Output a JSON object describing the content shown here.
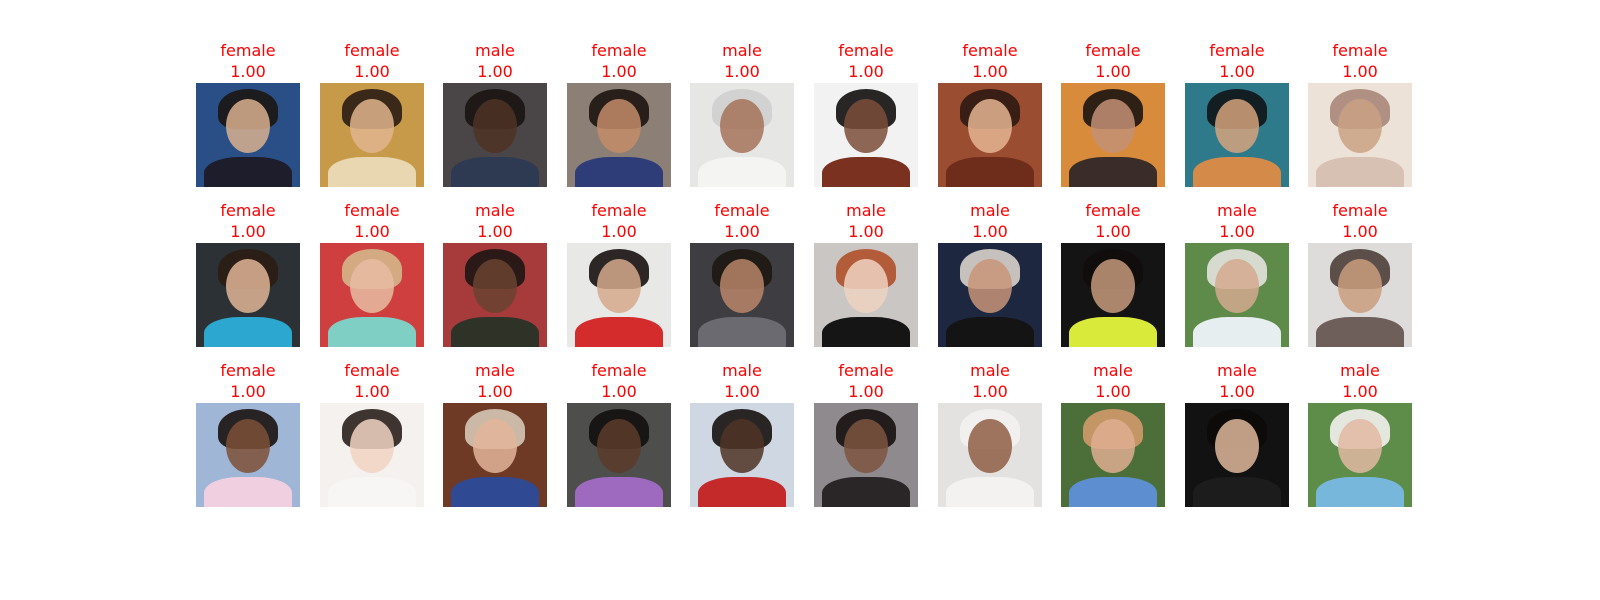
{
  "grid": {
    "cells": [
      {
        "gender": "female",
        "score": "1.00",
        "bg": "#2a4f86",
        "hair": "#1b1512",
        "skin": "#d9b08e",
        "cloth": "#1e1d2c"
      },
      {
        "gender": "female",
        "score": "1.00",
        "bg": "#c79a4a",
        "hair": "#2a1d14",
        "skin": "#e0b58d",
        "cloth": "#e9d7b1"
      },
      {
        "gender": "male",
        "score": "1.00",
        "bg": "#4a4546",
        "hair": "#1a1412",
        "skin": "#4e3326",
        "cloth": "#2d3a52"
      },
      {
        "gender": "female",
        "score": "1.00",
        "bg": "#8b7f76",
        "hair": "#1d1512",
        "skin": "#c38c6a",
        "cloth": "#2e3d78"
      },
      {
        "gender": "male",
        "score": "1.00",
        "bg": "#e6e6e4",
        "hair": "#cfcfcf",
        "skin": "#a4735a",
        "cloth": "#f4f4f2"
      },
      {
        "gender": "female",
        "score": "1.00",
        "bg": "#f2f2f2",
        "hair": "#120f0e",
        "skin": "#7b4d39",
        "cloth": "#7a3120"
      },
      {
        "gender": "female",
        "score": "1.00",
        "bg": "#9a4d31",
        "hair": "#2d1a12",
        "skin": "#e5b592",
        "cloth": "#6e2d1a"
      },
      {
        "gender": "female",
        "score": "1.00",
        "bg": "#d78b3b",
        "hair": "#1c1412",
        "skin": "#c49076",
        "cloth": "#3a2c28"
      },
      {
        "gender": "female",
        "score": "1.00",
        "bg": "#2f7a8a",
        "hair": "#0f1416",
        "skin": "#d5a37c",
        "cloth": "#d48a48"
      },
      {
        "gender": "female",
        "score": "1.00",
        "bg": "#ece2d7",
        "hair": "#a8877a",
        "skin": "#caa184",
        "cloth": "#d7c1b3"
      },
      {
        "gender": "female",
        "score": "1.00",
        "bg": "#2c3136",
        "hair": "#2b1d14",
        "skin": "#e0b596",
        "cloth": "#2ba7d0"
      },
      {
        "gender": "female",
        "score": "1.00",
        "bg": "#cf3f3f",
        "hair": "#d3b68a",
        "skin": "#e8bca2",
        "cloth": "#7fcfc5"
      },
      {
        "gender": "male",
        "score": "1.00",
        "bg": "#a73a3a",
        "hair": "#1e1614",
        "skin": "#6a4331",
        "cloth": "#2f3327"
      },
      {
        "gender": "female",
        "score": "1.00",
        "bg": "#e8e8e6",
        "hair": "#17110e",
        "skin": "#d5a98c",
        "cloth": "#d42c2c"
      },
      {
        "gender": "female",
        "score": "1.00",
        "bg": "#3e3e42",
        "hair": "#1d1713",
        "skin": "#b98568",
        "cloth": "#6a6a70"
      },
      {
        "gender": "male",
        "score": "1.00",
        "bg": "#c9c6c3",
        "hair": "#b0502b",
        "skin": "#efd2c2",
        "cloth": "#151515"
      },
      {
        "gender": "male",
        "score": "1.00",
        "bg": "#1e2740",
        "hair": "#d9d3cc",
        "skin": "#c89479",
        "cloth": "#141414"
      },
      {
        "gender": "female",
        "score": "1.00",
        "bg": "#141414",
        "hair": "#100c0b",
        "skin": "#c69a7b",
        "cloth": "#d9ea3a"
      },
      {
        "gender": "male",
        "score": "1.00",
        "bg": "#5e8a4a",
        "hair": "#e4e2de",
        "skin": "#d3a98e",
        "cloth": "#e6eef0"
      },
      {
        "gender": "female",
        "score": "1.00",
        "bg": "#dedcda",
        "hair": "#4e3f3a",
        "skin": "#c99d7d",
        "cloth": "#6e5f5a"
      },
      {
        "gender": "female",
        "score": "1.00",
        "bg": "#9fb6d6",
        "hair": "#1a1210",
        "skin": "#7e5038",
        "cloth": "#f0cfe0"
      },
      {
        "gender": "female",
        "score": "1.00",
        "bg": "#f4f1ee",
        "hair": "#2a201c",
        "skin": "#f1d3c2",
        "cloth": "#f7f6f4"
      },
      {
        "gender": "male",
        "score": "1.00",
        "bg": "#6e3a26",
        "hair": "#d5c7b5",
        "skin": "#e3b59a",
        "cloth": "#2f4a93"
      },
      {
        "gender": "female",
        "score": "1.00",
        "bg": "#4e4e4c",
        "hair": "#131110",
        "skin": "#5c3b2a",
        "cloth": "#9e6ac0"
      },
      {
        "gender": "male",
        "score": "1.00",
        "bg": "#cfd8e2",
        "hair": "#161210",
        "skin": "#4f3426",
        "cloth": "#c42a2a"
      },
      {
        "gender": "female",
        "score": "1.00",
        "bg": "#8e8a8e",
        "hair": "#16110f",
        "skin": "#7c5440",
        "cloth": "#2a2628"
      },
      {
        "gender": "male",
        "score": "1.00",
        "bg": "#e4e2e0",
        "hair": "#f2f2f0",
        "skin": "#8f5e44",
        "cloth": "#f4f2f0"
      },
      {
        "gender": "male",
        "score": "1.00",
        "bg": "#4c6f3a",
        "hair": "#d29a6a",
        "skin": "#dfae92",
        "cloth": "#5d8fd0"
      },
      {
        "gender": "male",
        "score": "1.00",
        "bg": "#121212",
        "hair": "#0d0b0a",
        "skin": "#e1b79b",
        "cloth": "#1c1c1c"
      },
      {
        "gender": "male",
        "score": "1.00",
        "bg": "#5d8d48",
        "hair": "#f3f1ee",
        "skin": "#e2b9a3",
        "cloth": "#78b7dc"
      }
    ]
  },
  "colors": {
    "label": "#ff0000"
  }
}
